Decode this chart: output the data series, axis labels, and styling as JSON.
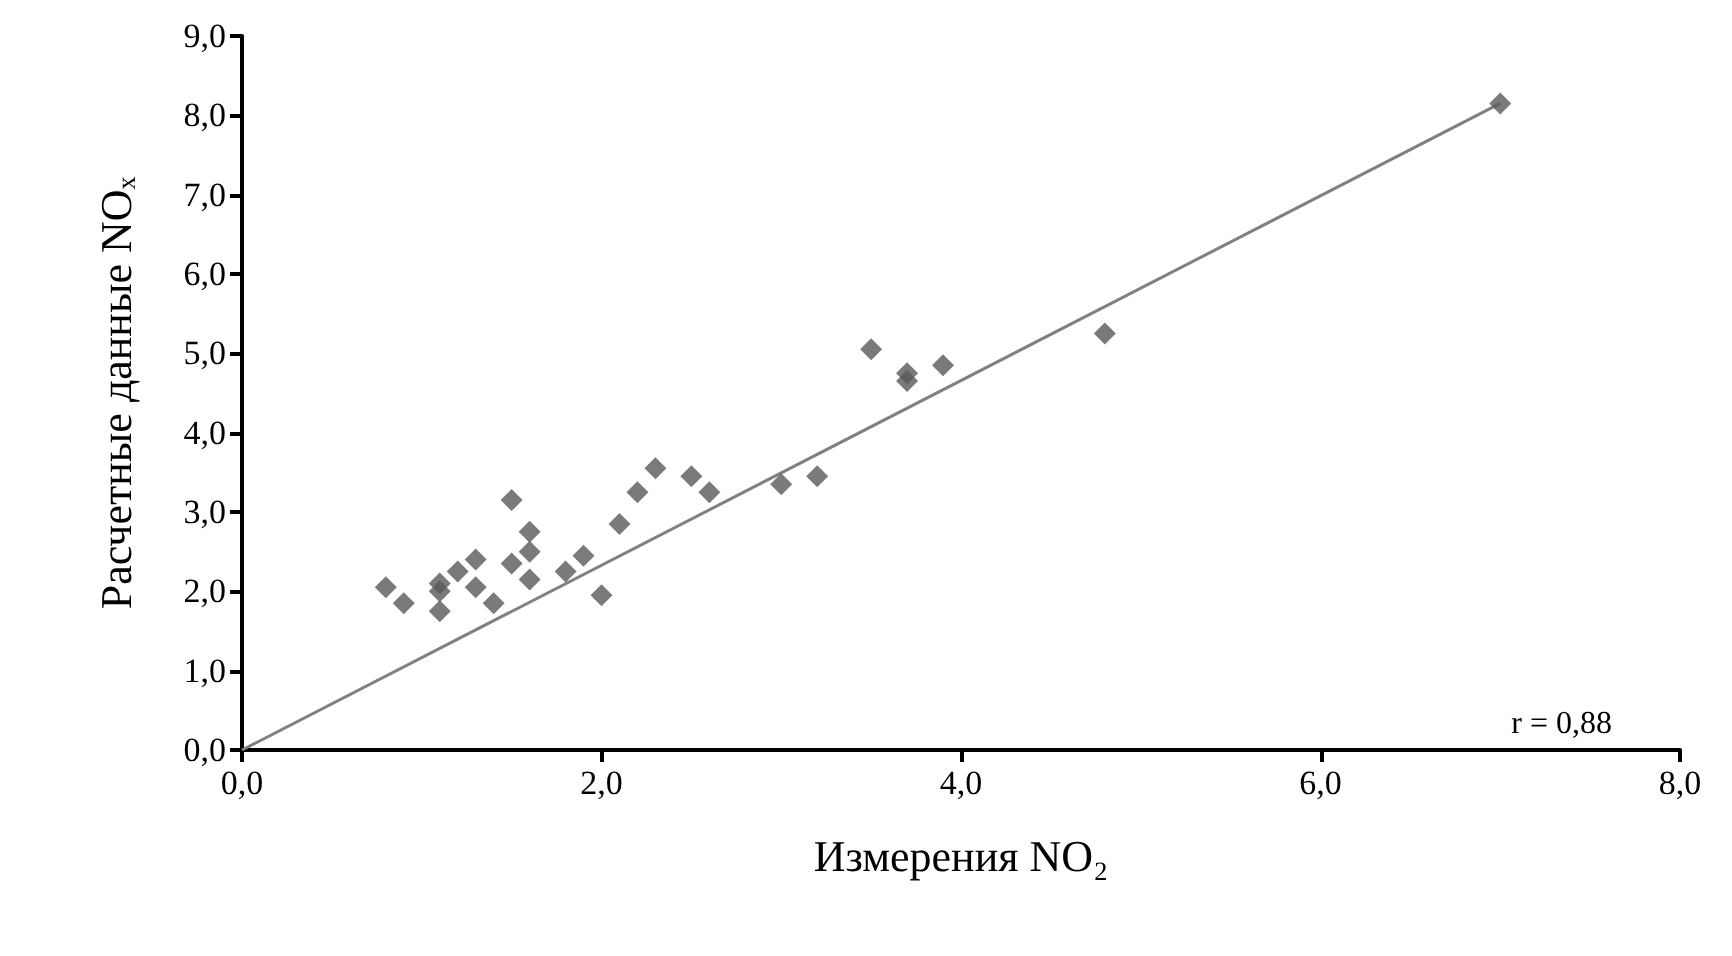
{
  "chart_data": {
    "type": "scatter",
    "xlabel": "Измерения NO₂",
    "ylabel": "Расчетные данные NOₓ",
    "xlim": [
      0,
      8
    ],
    "ylim": [
      0,
      9
    ],
    "xticks": [
      {
        "value": 0,
        "label": "0,0"
      },
      {
        "value": 2,
        "label": "2,0"
      },
      {
        "value": 4,
        "label": "4,0"
      },
      {
        "value": 6,
        "label": "6,0"
      },
      {
        "value": 8,
        "label": "8,0"
      }
    ],
    "yticks": [
      {
        "value": 0,
        "label": "0,0"
      },
      {
        "value": 1,
        "label": "1,0"
      },
      {
        "value": 2,
        "label": "2,0"
      },
      {
        "value": 3,
        "label": "3,0"
      },
      {
        "value": 4,
        "label": "4,0"
      },
      {
        "value": 5,
        "label": "5,0"
      },
      {
        "value": 6,
        "label": "6,0"
      },
      {
        "value": 7,
        "label": "7,0"
      },
      {
        "value": 8,
        "label": "8,0"
      },
      {
        "value": 9,
        "label": "9,0"
      }
    ],
    "grid": false,
    "marker": "diamond",
    "annotations": [
      "r = 0,88"
    ],
    "series": [
      {
        "color": "#595959",
        "x": [
          0.8,
          0.9,
          1.1,
          1.1,
          1.1,
          1.2,
          1.3,
          1.3,
          1.4,
          1.5,
          1.5,
          1.6,
          1.6,
          1.6,
          1.8,
          1.9,
          2.0,
          2.1,
          2.2,
          2.3,
          2.5,
          2.6,
          3.0,
          3.2,
          3.5,
          3.7,
          3.7,
          3.9,
          4.8,
          7.0
        ],
        "values": [
          2.05,
          1.85,
          1.75,
          2.0,
          2.1,
          2.25,
          2.4,
          2.05,
          1.85,
          3.15,
          2.35,
          2.75,
          2.5,
          2.15,
          2.25,
          2.45,
          1.95,
          2.85,
          3.25,
          3.55,
          3.45,
          3.25,
          3.35,
          3.45,
          5.05,
          4.75,
          4.65,
          4.85,
          5.25,
          8.15
        ]
      },
      {
        "type": "line",
        "color": "#808080",
        "x": [
          0,
          7.0
        ],
        "values": [
          0,
          8.15
        ],
        "marker": "none",
        "line_style": "solid"
      }
    ]
  }
}
